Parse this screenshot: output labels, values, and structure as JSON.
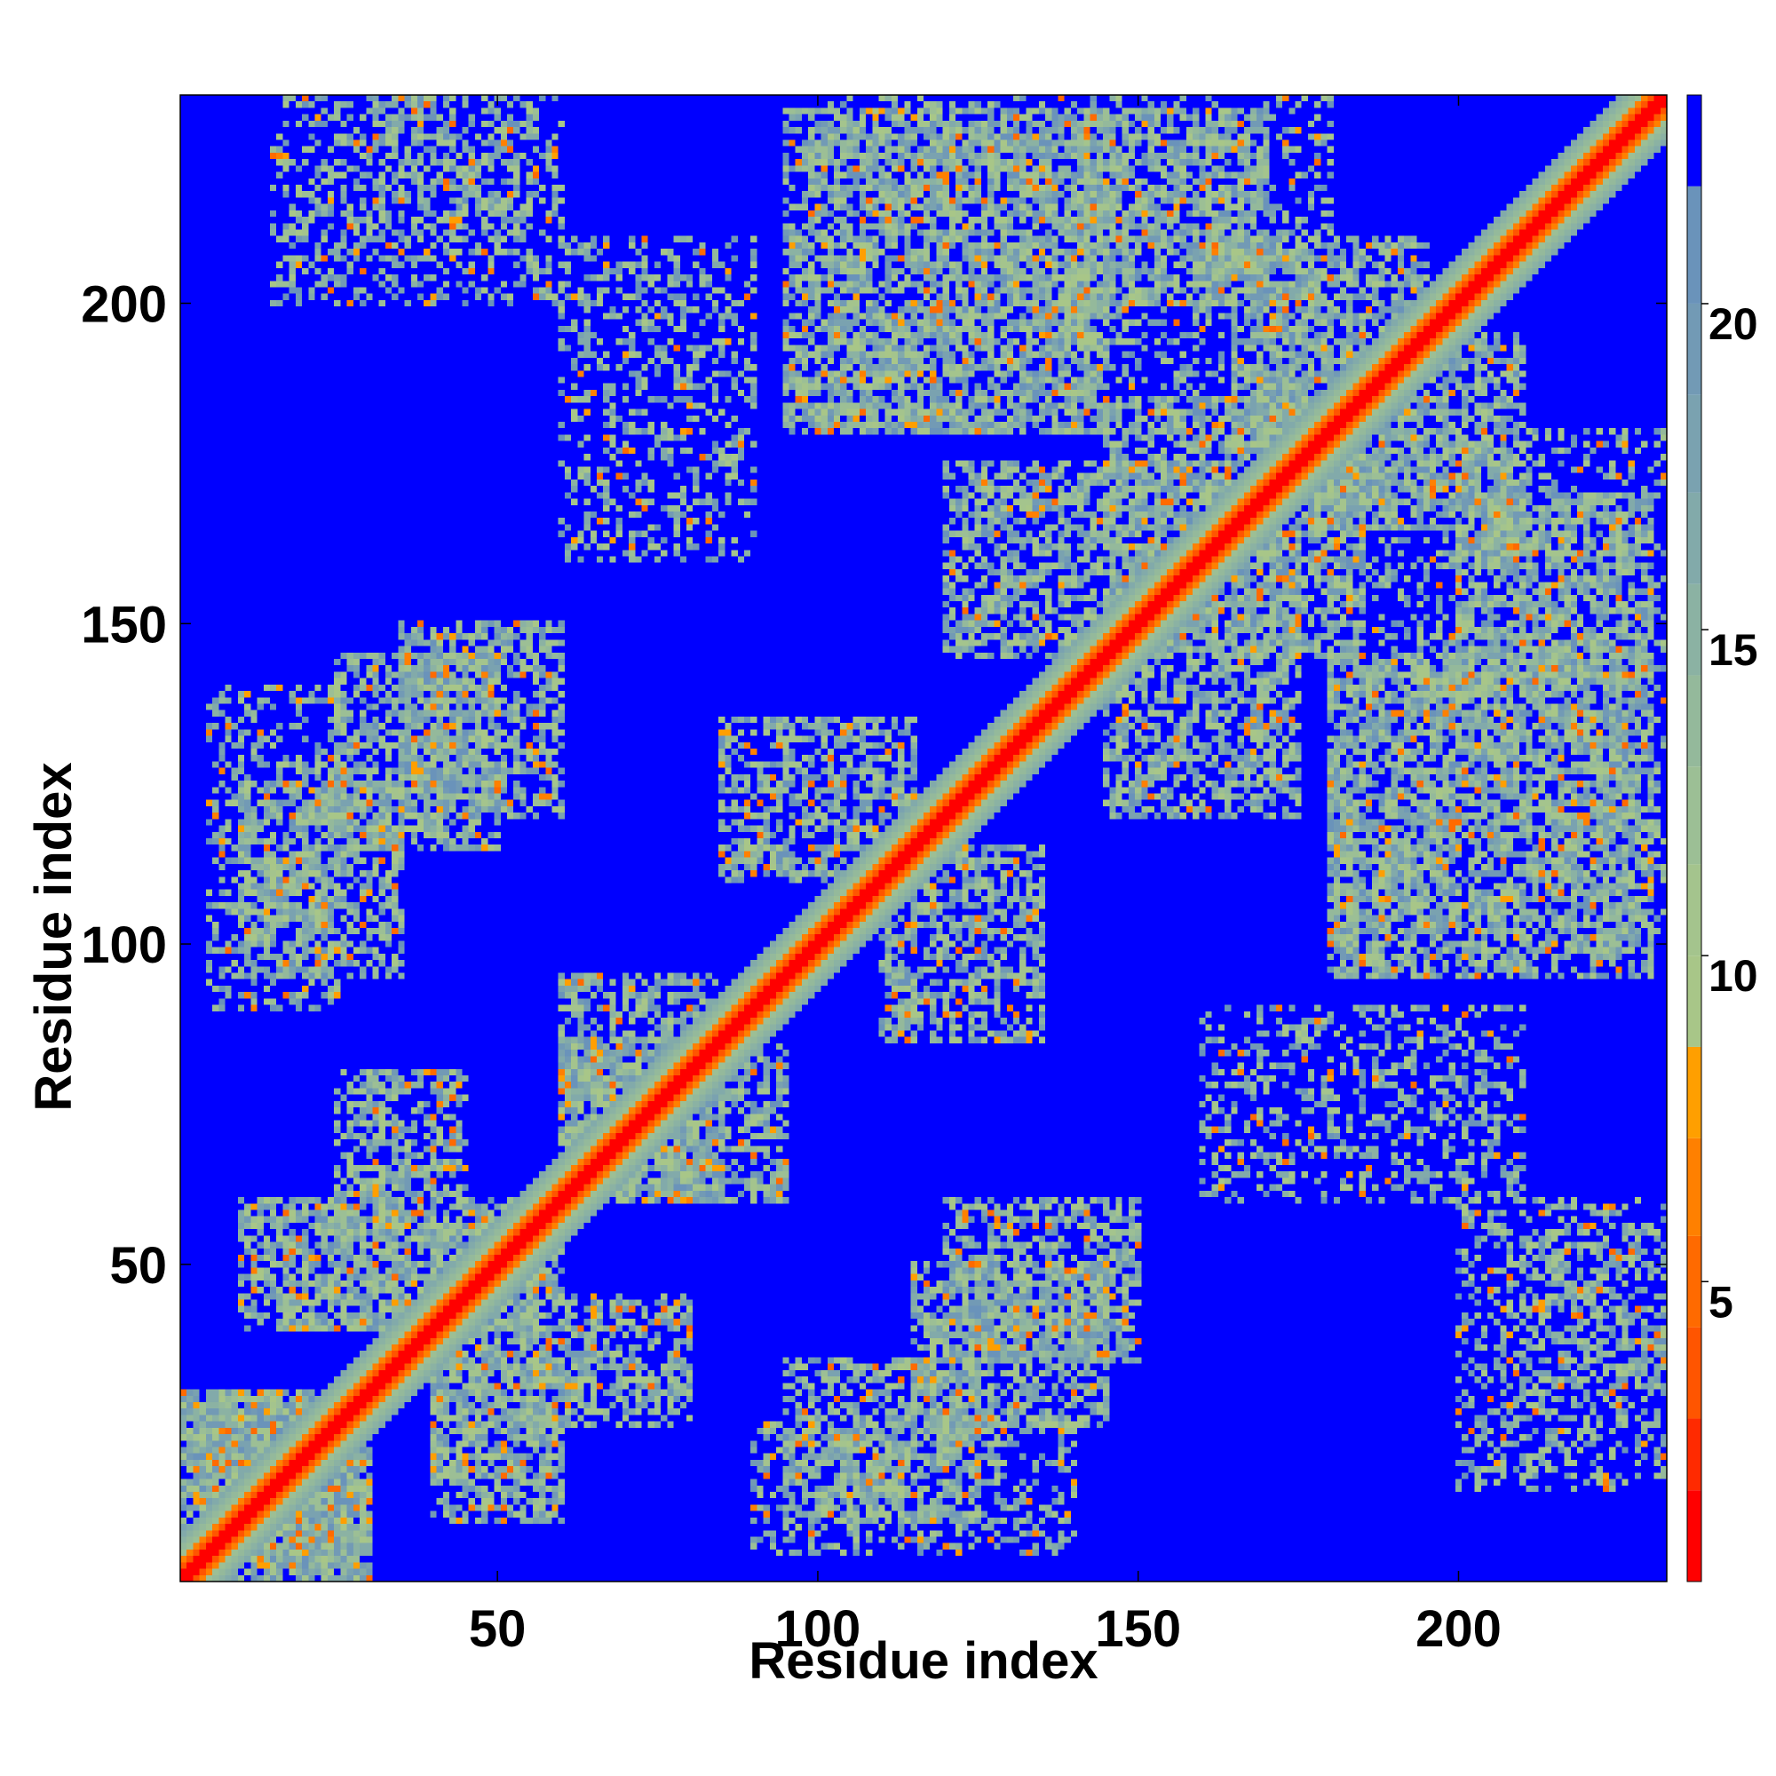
{
  "chart_data": {
    "type": "heatmap",
    "title": "",
    "xlabel": "Residue index",
    "ylabel": "Residue index",
    "n_residues": 232,
    "xlim": [
      1,
      232
    ],
    "ylim": [
      1,
      232
    ],
    "x_ticks": [
      50,
      100,
      150,
      200
    ],
    "y_ticks": [
      50,
      100,
      150,
      200
    ],
    "x_tick_labels": [
      "50",
      "100",
      "150",
      "200"
    ],
    "y_tick_labels": [
      "50",
      "100",
      "150",
      "200"
    ],
    "colorbar": {
      "range": [
        0.4,
        23.2
      ],
      "ticks": [
        5,
        10,
        15,
        20
      ],
      "tick_labels": [
        "5",
        "10",
        "15",
        "20"
      ],
      "levels": [
        {
          "min": 0.4,
          "max": 1.8,
          "color": "#ff0000"
        },
        {
          "min": 1.8,
          "max": 2.9,
          "color": "#ff2a00"
        },
        {
          "min": 2.9,
          "max": 4.3,
          "color": "#ff5500"
        },
        {
          "min": 4.3,
          "max": 5.7,
          "color": "#ff6a00"
        },
        {
          "min": 5.7,
          "max": 7.2,
          "color": "#ff8000"
        },
        {
          "min": 7.2,
          "max": 8.6,
          "color": "#ff9f00"
        },
        {
          "min": 8.6,
          "max": 10.0,
          "color": "#a8c688"
        },
        {
          "min": 10.0,
          "max": 11.4,
          "color": "#a4c48d"
        },
        {
          "min": 11.4,
          "max": 12.9,
          "color": "#9cbf95"
        },
        {
          "min": 12.9,
          "max": 14.3,
          "color": "#94b99b"
        },
        {
          "min": 14.3,
          "max": 15.7,
          "color": "#8bb2a3"
        },
        {
          "min": 15.7,
          "max": 17.1,
          "color": "#82aaaa"
        },
        {
          "min": 17.1,
          "max": 18.6,
          "color": "#7aa2b0"
        },
        {
          "min": 18.6,
          "max": 20.0,
          "color": "#729ab5"
        },
        {
          "min": 20.0,
          "max": 21.8,
          "color": "#6a93ba"
        },
        {
          "min": 21.8,
          "max": 23.2,
          "color": "#0000ff"
        }
      ]
    },
    "background_color": "#0000ff",
    "contact_regions": [
      {
        "x": [
          3,
          30
        ],
        "y": [
          1,
          28
        ],
        "level": "low"
      },
      {
        "x": [
          18,
          58
        ],
        "y": [
          40,
          60
        ],
        "level": "medium"
      },
      {
        "x": [
          40,
          60
        ],
        "y": [
          10,
          35
        ],
        "level": "medium"
      },
      {
        "x": [
          25,
          45
        ],
        "y": [
          60,
          80
        ],
        "level": "medium"
      },
      {
        "x": [
          10,
          35
        ],
        "y": [
          95,
          125
        ],
        "level": "medium"
      },
      {
        "x": [
          35,
          60
        ],
        "y": [
          120,
          150
        ],
        "level": "medium"
      },
      {
        "x": [
          60,
          85
        ],
        "y": [
          60,
          95
        ],
        "level": "medium"
      },
      {
        "x": [
          85,
          115
        ],
        "y": [
          110,
          135
        ],
        "level": "medium"
      },
      {
        "x": [
          115,
          145
        ],
        "y": [
          25,
          50
        ],
        "level": "medium"
      },
      {
        "x": [
          120,
          150
        ],
        "y": [
          145,
          175
        ],
        "level": "medium"
      },
      {
        "x": [
          145,
          175
        ],
        "y": [
          150,
          185
        ],
        "level": "medium"
      },
      {
        "x": [
          165,
          195
        ],
        "y": [
          175,
          210
        ],
        "level": "medium"
      },
      {
        "x": [
          200,
          230
        ],
        "y": [
          140,
          170
        ],
        "level": "medium"
      },
      {
        "x": [
          180,
          230
        ],
        "y": [
          95,
          145
        ],
        "level": "medium"
      },
      {
        "x": [
          210,
          232
        ],
        "y": [
          30,
          55
        ],
        "level": "high"
      },
      {
        "x": [
          15,
          60
        ],
        "y": [
          200,
          232
        ],
        "level": "high"
      },
      {
        "x": [
          100,
          180
        ],
        "y": [
          180,
          232
        ],
        "level": "high"
      },
      {
        "x": [
          90,
          140
        ],
        "y": [
          5,
          25
        ],
        "level": "high"
      },
      {
        "x": [
          160,
          210
        ],
        "y": [
          60,
          90
        ],
        "level": "high"
      }
    ]
  }
}
